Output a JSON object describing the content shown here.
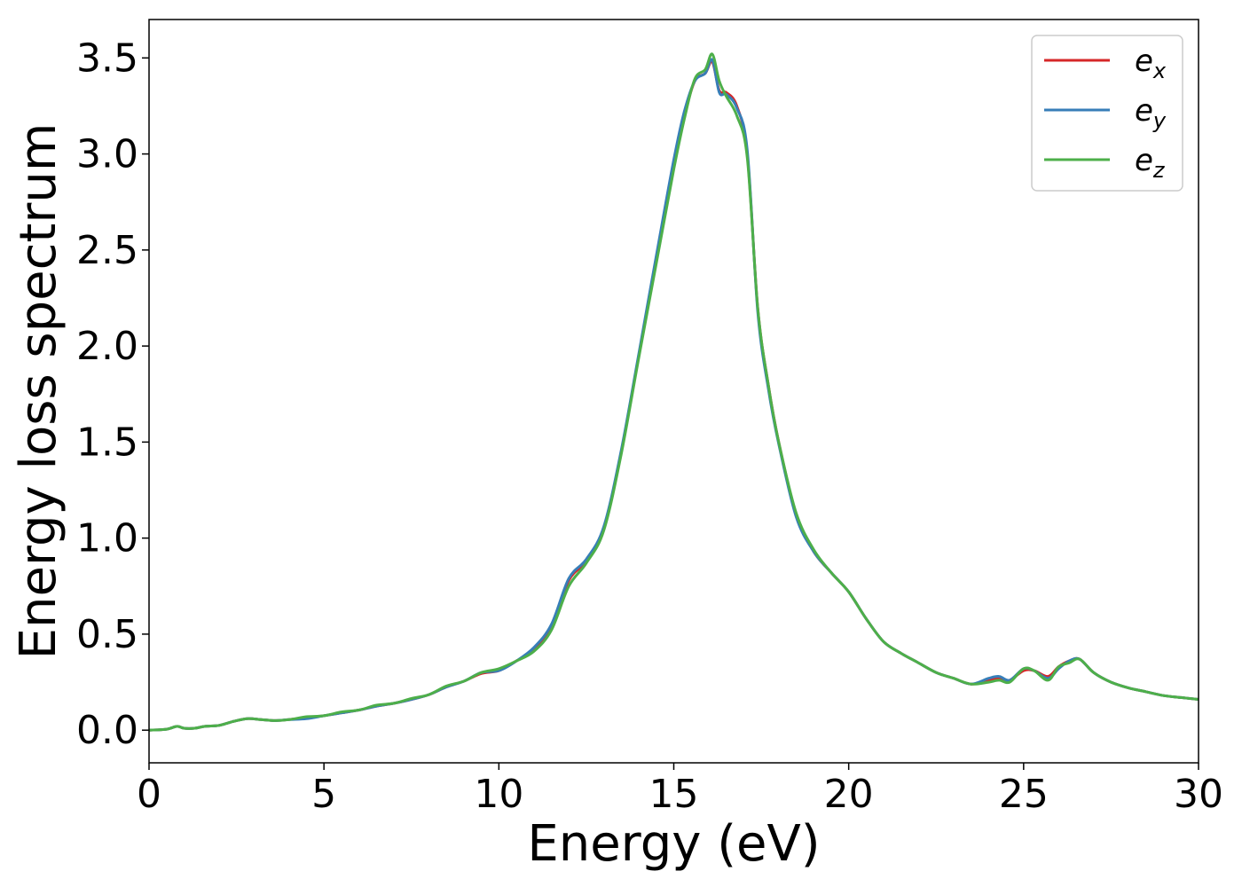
{
  "chart_data": {
    "type": "line",
    "xlabel": "Energy (eV)",
    "ylabel": "Energy loss spectrum",
    "xlim": [
      0,
      30
    ],
    "ylim": [
      -0.17,
      3.7
    ],
    "xticks": [
      0,
      5,
      10,
      15,
      20,
      25,
      30
    ],
    "xtick_labels": [
      "0",
      "5",
      "10",
      "15",
      "20",
      "25",
      "30"
    ],
    "yticks": [
      0.0,
      0.5,
      1.0,
      1.5,
      2.0,
      2.5,
      3.0,
      3.5
    ],
    "ytick_labels": [
      "0.0",
      "0.5",
      "1.0",
      "1.5",
      "2.0",
      "2.5",
      "3.0",
      "3.5"
    ],
    "grid": false,
    "legend": "top-right",
    "x": [
      0,
      0.5,
      0.8,
      1.0,
      1.3,
      1.6,
      2.0,
      2.4,
      2.8,
      3.2,
      3.6,
      4.0,
      4.5,
      5.0,
      5.5,
      6.0,
      6.5,
      7.0,
      7.5,
      8.0,
      8.5,
      9.0,
      9.5,
      10.0,
      10.5,
      11.0,
      11.5,
      12.0,
      12.5,
      13.0,
      13.5,
      14.0,
      14.5,
      15.0,
      15.3,
      15.6,
      15.9,
      16.1,
      16.3,
      16.5,
      16.8,
      17.1,
      17.4,
      17.7,
      18.0,
      18.5,
      19.0,
      19.5,
      20.0,
      20.5,
      21.0,
      21.5,
      22.0,
      22.5,
      23.0,
      23.5,
      24.0,
      24.3,
      24.6,
      25.0,
      25.3,
      25.7,
      26.0,
      26.3,
      26.6,
      27.0,
      27.5,
      28.0,
      28.5,
      29.0,
      29.5,
      30.0
    ],
    "series": [
      {
        "name": "e_x",
        "color": "#d62728",
        "values": [
          0.0,
          0.005,
          0.02,
          0.01,
          0.01,
          0.02,
          0.025,
          0.045,
          0.06,
          0.055,
          0.05,
          0.055,
          0.065,
          0.075,
          0.09,
          0.105,
          0.125,
          0.14,
          0.16,
          0.185,
          0.225,
          0.255,
          0.295,
          0.31,
          0.36,
          0.42,
          0.54,
          0.78,
          0.88,
          1.05,
          1.45,
          1.95,
          2.45,
          2.95,
          3.2,
          3.38,
          3.42,
          3.48,
          3.33,
          3.32,
          3.25,
          3.0,
          2.2,
          1.8,
          1.5,
          1.12,
          0.93,
          0.82,
          0.72,
          0.58,
          0.46,
          0.4,
          0.35,
          0.3,
          0.27,
          0.24,
          0.26,
          0.27,
          0.26,
          0.31,
          0.31,
          0.28,
          0.33,
          0.36,
          0.37,
          0.3,
          0.25,
          0.22,
          0.2,
          0.18,
          0.17,
          0.16
        ]
      },
      {
        "name": "e_y",
        "color": "#377eb8",
        "values": [
          0.0,
          0.005,
          0.02,
          0.01,
          0.01,
          0.02,
          0.025,
          0.045,
          0.06,
          0.055,
          0.05,
          0.055,
          0.06,
          0.075,
          0.09,
          0.105,
          0.125,
          0.14,
          0.16,
          0.185,
          0.225,
          0.255,
          0.3,
          0.31,
          0.36,
          0.43,
          0.55,
          0.79,
          0.89,
          1.06,
          1.46,
          1.96,
          2.47,
          2.97,
          3.22,
          3.38,
          3.42,
          3.49,
          3.32,
          3.31,
          3.24,
          3.02,
          2.18,
          1.78,
          1.49,
          1.11,
          0.93,
          0.82,
          0.72,
          0.58,
          0.46,
          0.4,
          0.35,
          0.3,
          0.27,
          0.24,
          0.27,
          0.28,
          0.26,
          0.32,
          0.31,
          0.27,
          0.32,
          0.36,
          0.37,
          0.3,
          0.25,
          0.22,
          0.2,
          0.18,
          0.17,
          0.16
        ]
      },
      {
        "name": "e_z",
        "color": "#4daf4a",
        "values": [
          0.0,
          0.005,
          0.02,
          0.01,
          0.01,
          0.02,
          0.025,
          0.045,
          0.06,
          0.055,
          0.05,
          0.055,
          0.07,
          0.075,
          0.095,
          0.105,
          0.13,
          0.14,
          0.165,
          0.185,
          0.23,
          0.255,
          0.3,
          0.32,
          0.36,
          0.41,
          0.52,
          0.75,
          0.87,
          1.04,
          1.44,
          1.94,
          2.43,
          2.92,
          3.18,
          3.39,
          3.44,
          3.52,
          3.38,
          3.3,
          3.2,
          2.98,
          2.2,
          1.8,
          1.5,
          1.13,
          0.94,
          0.82,
          0.72,
          0.58,
          0.46,
          0.4,
          0.35,
          0.3,
          0.27,
          0.24,
          0.25,
          0.26,
          0.25,
          0.32,
          0.31,
          0.26,
          0.33,
          0.35,
          0.37,
          0.3,
          0.25,
          0.22,
          0.2,
          0.18,
          0.17,
          0.16
        ]
      }
    ]
  },
  "legend": {
    "entries": [
      {
        "base": "e",
        "sub": "x",
        "color": "#d62728"
      },
      {
        "base": "e",
        "sub": "y",
        "color": "#377eb8"
      },
      {
        "base": "e",
        "sub": "z",
        "color": "#4daf4a"
      }
    ]
  }
}
